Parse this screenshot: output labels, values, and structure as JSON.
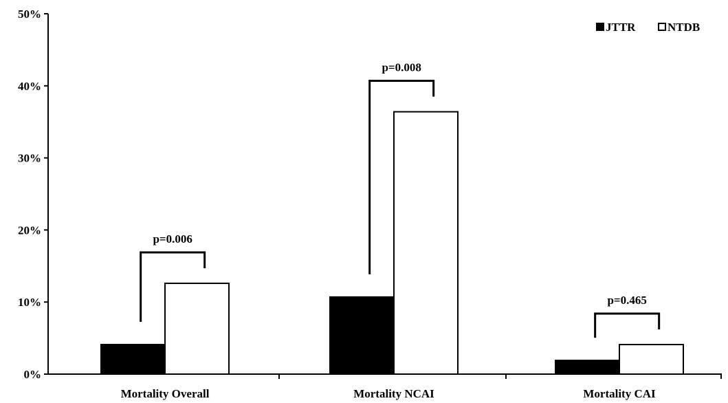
{
  "chart_data": {
    "type": "bar",
    "categories": [
      "Mortality Overall",
      "Mortality NCAI",
      "Mortality CAI"
    ],
    "series": [
      {
        "name": "JTTR",
        "values": [
          4.1,
          10.7,
          1.9
        ],
        "color": "#000000"
      },
      {
        "name": "NTDB",
        "values": [
          12.6,
          36.4,
          4.1
        ],
        "color": "#ffffff"
      }
    ],
    "ylim": [
      0,
      50
    ],
    "yticks": [
      0,
      10,
      20,
      30,
      40,
      50
    ],
    "ytick_labels": [
      "0%",
      "10%",
      "20%",
      "30%",
      "40%",
      "50%"
    ],
    "annotations": [
      {
        "category": "Mortality Overall",
        "text": "p=0.006"
      },
      {
        "category": "Mortality NCAI",
        "text": "p=0.008"
      },
      {
        "category": "Mortality CAI",
        "text": "p=0.465"
      }
    ],
    "legend_position": "top-right",
    "grid": false,
    "title": "",
    "xlabel": "",
    "ylabel": ""
  }
}
